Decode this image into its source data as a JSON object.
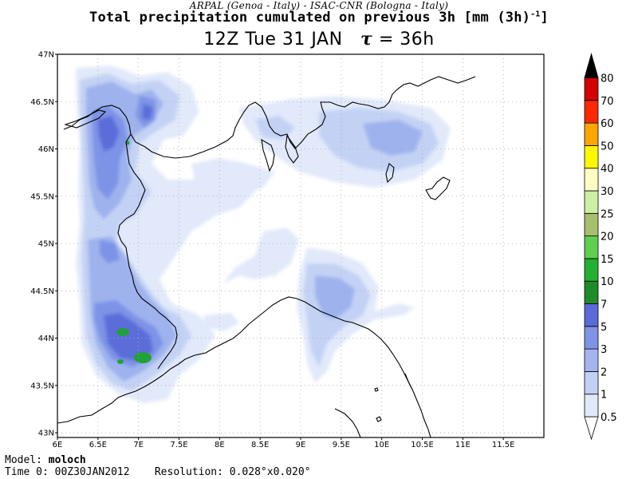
{
  "header": {
    "credit": "ARPAL (Genoa - Italy)  -  ISAC-CNR (Bologna - Italy)",
    "title": "Total precipitation cumulated on previous 3h [mm (3h)",
    "title_sup": "-1",
    "title_end": "]",
    "subtitle_time": "12Z Tue 31 JAN",
    "subtitle_tau": "τ",
    "subtitle_lead": "= 36h"
  },
  "map": {
    "lon_ticks": [
      "6E",
      "6.5E",
      "7E",
      "7.5E",
      "8E",
      "8.5E",
      "9E",
      "9.5E",
      "10E",
      "10.5E",
      "11E",
      "11.5E"
    ],
    "lat_ticks": [
      "47N",
      "46.5N",
      "46N",
      "45.5N",
      "45N",
      "44.5N",
      "44N",
      "43.5N",
      "43N"
    ],
    "lon_range": [
      6.0,
      12.0
    ],
    "lat_range": [
      42.95,
      47.0
    ],
    "grid": "dotted"
  },
  "colorbar": {
    "labels": [
      "0.5",
      "1",
      "2",
      "3",
      "5",
      "7",
      "10",
      "15",
      "20",
      "25",
      "30",
      "40",
      "50",
      "60",
      "70",
      "80"
    ],
    "colors": [
      "#ffffff",
      "#e0e8fa",
      "#c1d0f5",
      "#a3b5ef",
      "#7f94e6",
      "#5b6ad9",
      "#1e8c28",
      "#22b033",
      "#5fcf4f",
      "#a6bf6d",
      "#cbefa3",
      "#fffdc3",
      "#fff700",
      "#ffa400",
      "#ff2a00",
      "#d50000",
      "#8e0000",
      "#5a0000",
      "#000000"
    ]
  },
  "precip_colors": {
    "lv1": "#e1e9fa",
    "lv2": "#c3d2f4",
    "lv3": "#9eb2ee",
    "lv4": "#7d93e6",
    "lv5": "#5b6dd9",
    "lv6": "#22a03a"
  },
  "footer": {
    "model_label": "Model:",
    "model_value": "moloch",
    "time_label": "Time 0:",
    "time_value": "00Z30JAN2012",
    "res_label": "Resolution:",
    "res_value": "0.028°x0.020°"
  }
}
